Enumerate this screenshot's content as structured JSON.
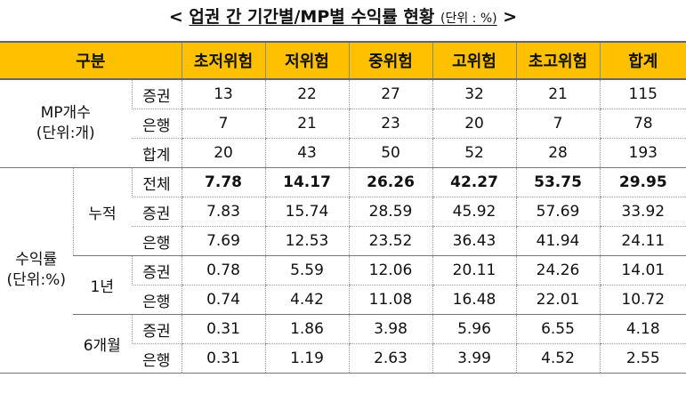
{
  "title": {
    "prefix": "<",
    "main": "업권 간 기간별/MP별 수익률 현황",
    "unit": "(단위 : %)",
    "suffix": ">"
  },
  "header": {
    "category": "구분",
    "cols": [
      "초저위험",
      "저위험",
      "중위험",
      "고위험",
      "초고위험",
      "합계"
    ]
  },
  "mp": {
    "label_line1": "MP개수",
    "label_line2": "(단위:개)",
    "rows": [
      {
        "sub": "증권",
        "values": [
          "13",
          "22",
          "27",
          "32",
          "21",
          "115"
        ]
      },
      {
        "sub": "은행",
        "values": [
          "7",
          "21",
          "23",
          "20",
          "7",
          "78"
        ]
      },
      {
        "sub": "합계",
        "values": [
          "20",
          "43",
          "50",
          "52",
          "28",
          "193"
        ]
      }
    ]
  },
  "returns": {
    "label_line1": "수익률",
    "label_line2": "(단위:%)",
    "groups": [
      {
        "period": "누적",
        "rows": [
          {
            "sub": "전체",
            "values": [
              "7.78",
              "14.17",
              "26.26",
              "42.27",
              "53.75",
              "29.95"
            ]
          },
          {
            "sub": "증권",
            "values": [
              "7.83",
              "15.74",
              "28.59",
              "45.92",
              "57.69",
              "33.92"
            ]
          },
          {
            "sub": "은행",
            "values": [
              "7.69",
              "12.53",
              "23.52",
              "36.43",
              "41.94",
              "24.11"
            ]
          }
        ]
      },
      {
        "period": "1년",
        "rows": [
          {
            "sub": "증권",
            "values": [
              "0.78",
              "5.59",
              "12.06",
              "20.11",
              "24.26",
              "14.01"
            ]
          },
          {
            "sub": "은행",
            "values": [
              "0.74",
              "4.42",
              "11.08",
              "16.48",
              "22.01",
              "10.72"
            ]
          }
        ]
      },
      {
        "period": "6개월",
        "rows": [
          {
            "sub": "증권",
            "values": [
              "0.31",
              "1.86",
              "3.98",
              "5.96",
              "6.55",
              "4.18"
            ]
          },
          {
            "sub": "은행",
            "values": [
              "0.31",
              "1.19",
              "2.63",
              "3.99",
              "4.52",
              "2.55"
            ]
          }
        ]
      }
    ]
  }
}
